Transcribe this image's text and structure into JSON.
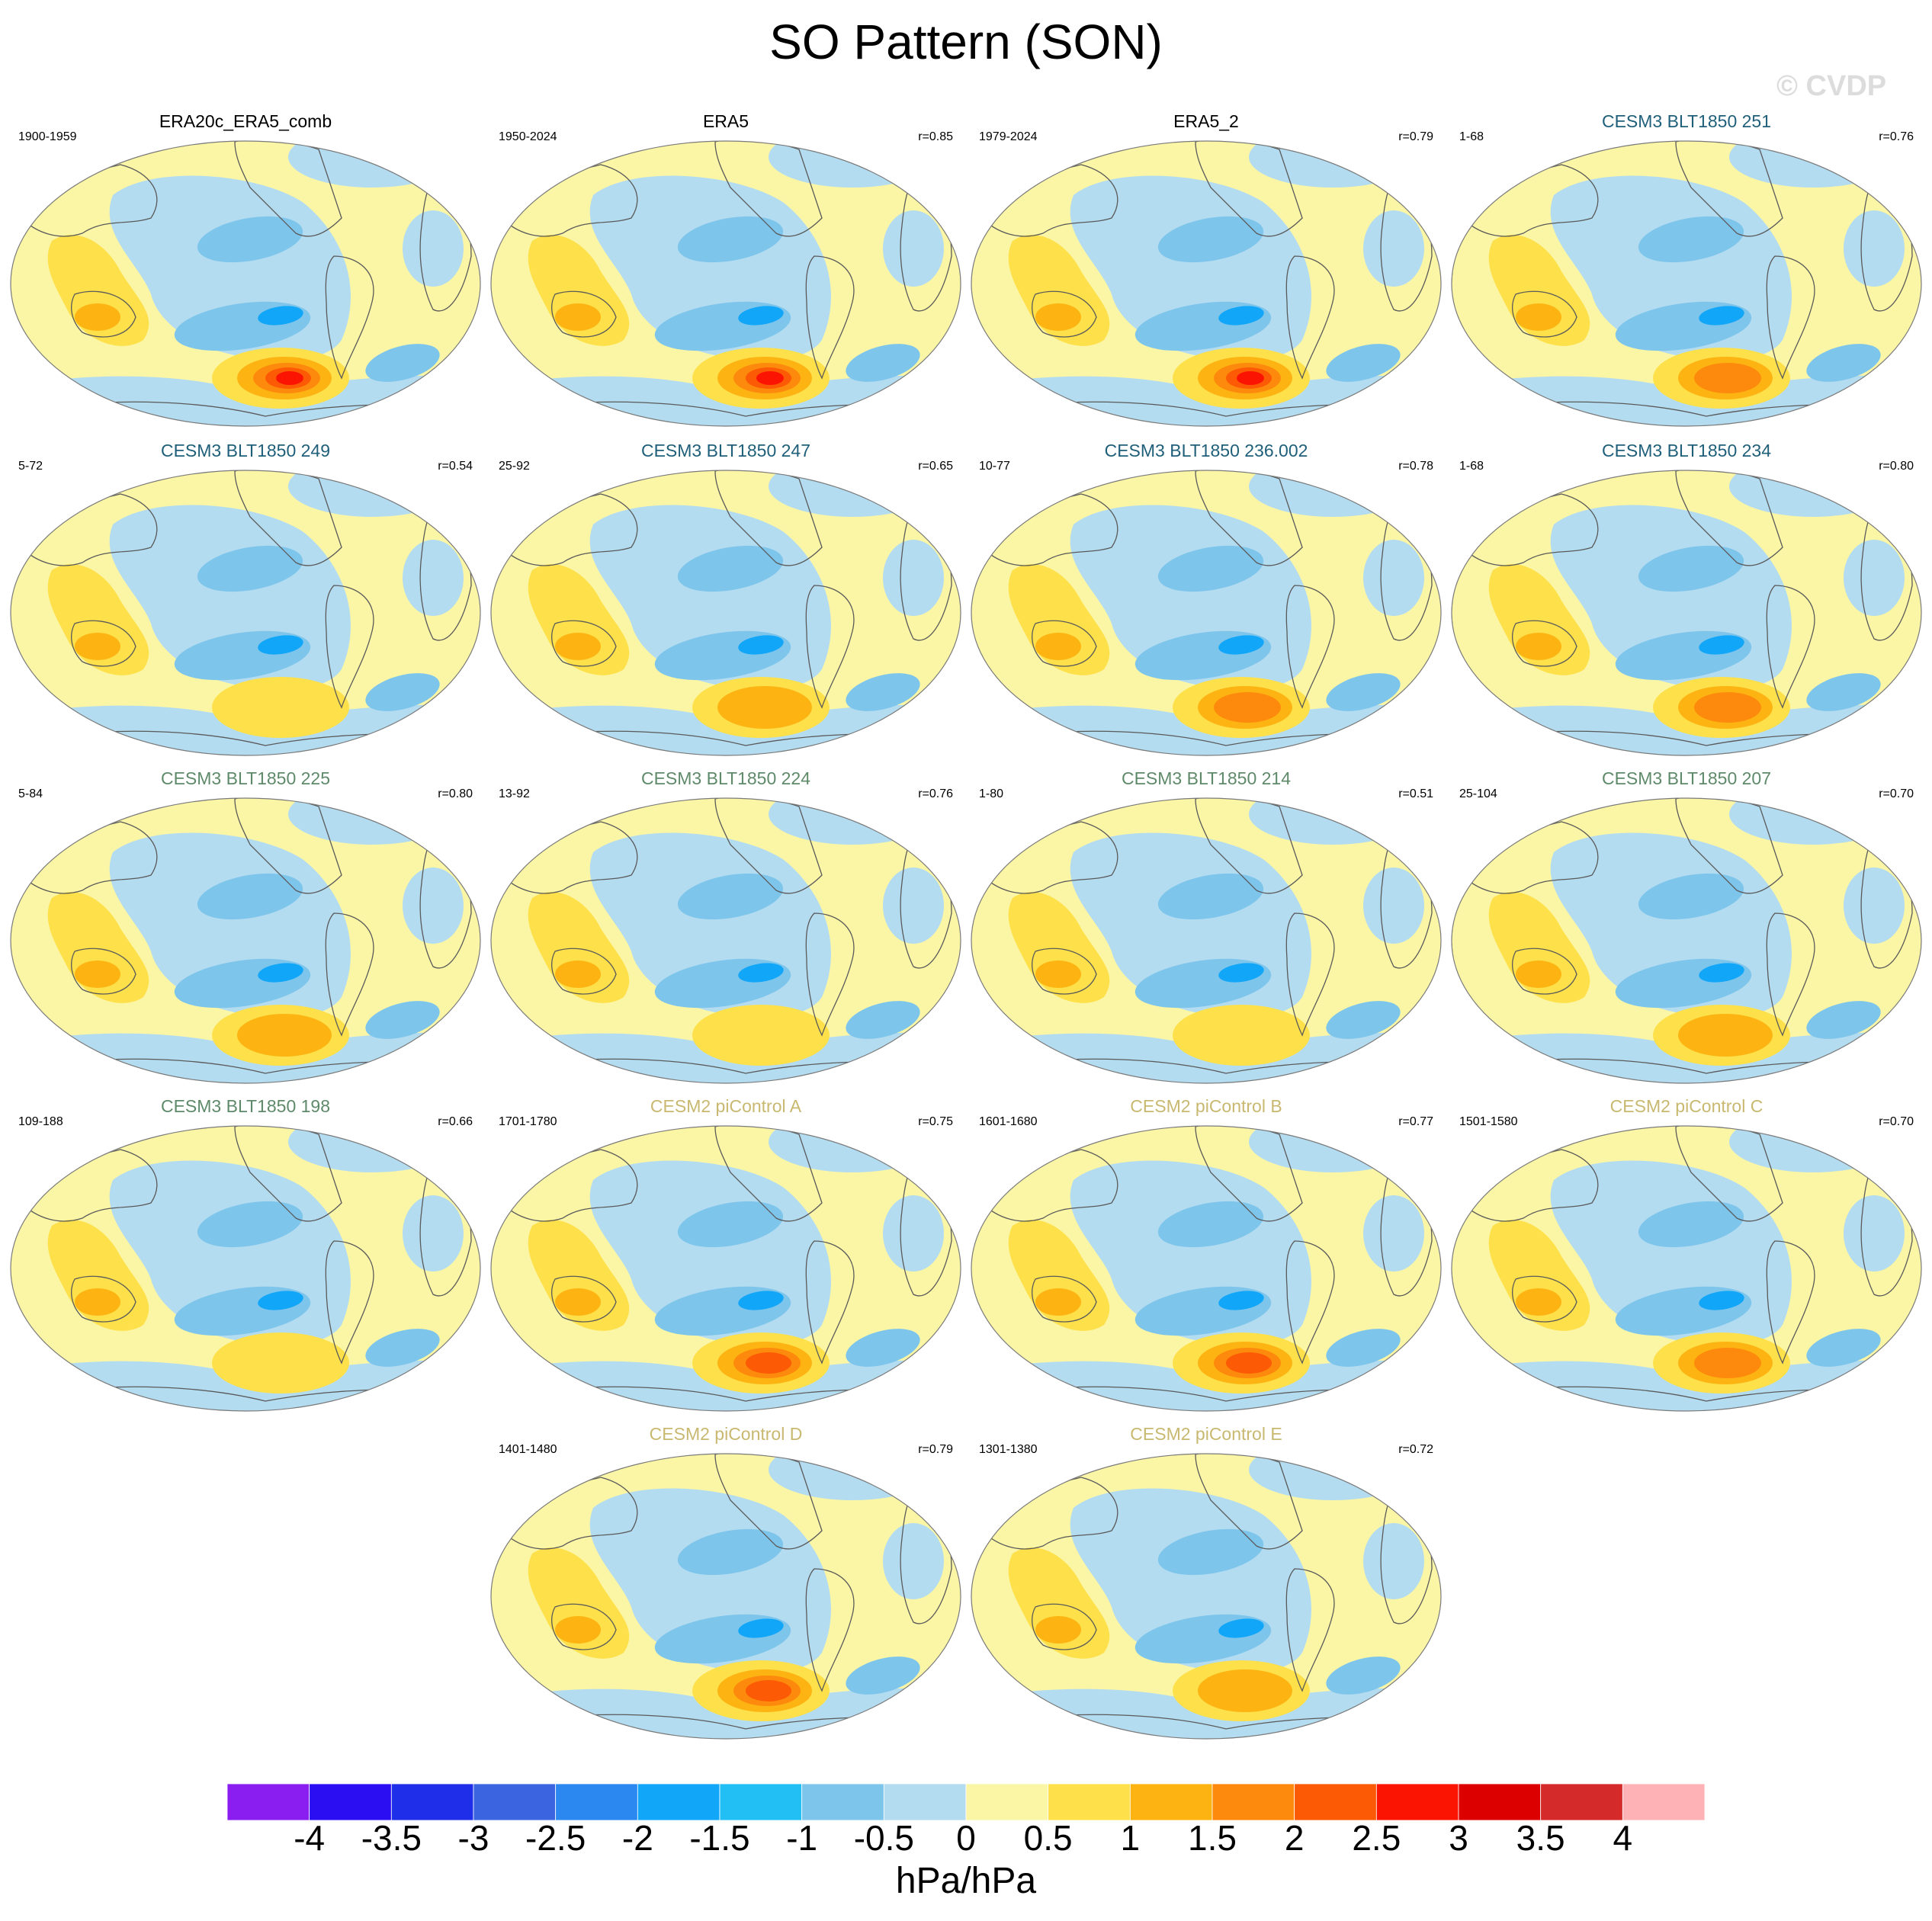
{
  "title": "SO Pattern (SON)",
  "watermark": "© CVDP",
  "colors": {
    "obs_title": "#000000",
    "cesm3_a": "#1f5f7a",
    "cesm3_b": "#5f8a6a",
    "cesm2": "#c8b870",
    "coastline": "#5a5a5a"
  },
  "panels": [
    {
      "title": "ERA20c_ERA5_comb",
      "period": "1900-1959",
      "r": "",
      "group": "obs_title",
      "highlow": 2.8
    },
    {
      "title": "ERA5",
      "period": "1950-2024",
      "r": "r=0.85",
      "group": "obs_title",
      "highlow": 2.4
    },
    {
      "title": "ERA5_2",
      "period": "1979-2024",
      "r": "r=0.79",
      "group": "obs_title",
      "highlow": 2.4
    },
    {
      "title": "CESM3 BLT1850 251",
      "period": "1-68",
      "r": "r=0.76",
      "group": "cesm3_a",
      "highlow": 1.7
    },
    {
      "title": "CESM3 BLT1850 249",
      "period": "5-72",
      "r": "r=0.54",
      "group": "cesm3_a",
      "highlow": 1.2
    },
    {
      "title": "CESM3 BLT1850 247",
      "period": "25-92",
      "r": "r=0.65",
      "group": "cesm3_a",
      "highlow": 1.3
    },
    {
      "title": "CESM3 BLT1850 236.002",
      "period": "10-77",
      "r": "r=0.78",
      "group": "cesm3_a",
      "highlow": 1.8
    },
    {
      "title": "CESM3 BLT1850 234",
      "period": "1-68",
      "r": "r=0.80",
      "group": "cesm3_a",
      "highlow": 1.7
    },
    {
      "title": "CESM3 BLT1850 225",
      "period": "5-84",
      "r": "r=0.80",
      "group": "cesm3_b",
      "highlow": 1.4
    },
    {
      "title": "CESM3 BLT1850 224",
      "period": "13-92",
      "r": "r=0.76",
      "group": "cesm3_b",
      "highlow": 1.2
    },
    {
      "title": "CESM3 BLT1850 214",
      "period": "1-80",
      "r": "r=0.51",
      "group": "cesm3_b",
      "highlow": 1.1
    },
    {
      "title": "CESM3 BLT1850 207",
      "period": "25-104",
      "r": "r=0.70",
      "group": "cesm3_b",
      "highlow": 1.3
    },
    {
      "title": "CESM3 BLT1850 198",
      "period": "109-188",
      "r": "r=0.66",
      "group": "cesm3_b",
      "highlow": 1.1
    },
    {
      "title": "CESM2 piControl A",
      "period": "1701-1780",
      "r": "r=0.75",
      "group": "cesm2",
      "highlow": 2.0
    },
    {
      "title": "CESM2 piControl B",
      "period": "1601-1680",
      "r": "r=0.77",
      "group": "cesm2",
      "highlow": 2.0
    },
    {
      "title": "CESM2 piControl C",
      "period": "1501-1580",
      "r": "r=0.70",
      "group": "cesm2",
      "highlow": 1.8
    },
    {
      "title": "CESM2 piControl D",
      "period": "1401-1480",
      "r": "r=0.79",
      "group": "cesm2",
      "highlow": 2.0
    },
    {
      "title": "CESM2 piControl E",
      "period": "1301-1380",
      "r": "r=0.72",
      "group": "cesm2",
      "highlow": 1.6
    }
  ],
  "colorbar": {
    "unit": "hPa/hPa",
    "ticks": [
      "-4",
      "-3.5",
      "-3",
      "-2.5",
      "-2",
      "-1.5",
      "-1",
      "-0.5",
      "0",
      "0.5",
      "1",
      "1.5",
      "2",
      "2.5",
      "3",
      "3.5",
      "4"
    ],
    "colors": [
      "#8a1ef0",
      "#2b0ff2",
      "#1f2ee8",
      "#3a64e0",
      "#2a88f0",
      "#12a6f8",
      "#22bff5",
      "#7ec5ec",
      "#b4dcf0",
      "#fbf6a6",
      "#fde04a",
      "#fdb413",
      "#fd8a0c",
      "#fd5a05",
      "#fc1403",
      "#dc0000",
      "#d42a2a",
      "#ffb2b6"
    ]
  }
}
